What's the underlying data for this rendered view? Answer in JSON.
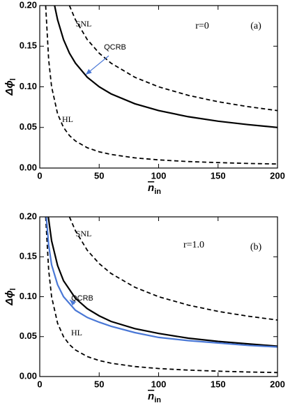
{
  "chart_data": [
    {
      "type": "line",
      "panel_label": "(a)",
      "param_label": "r=0",
      "x_label": "n",
      "x_label_sub": "in",
      "y_label": "Δϕ",
      "y_label_sub": "l",
      "xlim": [
        0,
        200
      ],
      "ylim": [
        0,
        0.2
      ],
      "xticks": [
        0,
        50,
        100,
        150,
        200
      ],
      "yticks": [
        {
          "value": 0,
          "label": "0.00"
        },
        {
          "value": 0.05,
          "label": "0.05"
        },
        {
          "value": 0.1,
          "label": "0.10"
        },
        {
          "value": 0.15,
          "label": "0.15"
        },
        {
          "value": 0.2,
          "label": "0.20"
        }
      ],
      "series": [
        {
          "name": "SNL",
          "color": "#000000",
          "dash": true,
          "x": [
            25,
            30,
            40,
            50,
            60,
            80,
            100,
            125,
            150,
            175,
            200
          ],
          "values": [
            0.2,
            0.1826,
            0.1581,
            0.1414,
            0.1291,
            0.1118,
            0.1,
            0.0894,
            0.0816,
            0.0756,
            0.0707
          ]
        },
        {
          "name": "HL",
          "color": "#000000",
          "dash": true,
          "x": [
            5,
            7.5,
            10,
            15,
            20,
            25,
            30,
            40,
            50,
            60,
            80,
            100,
            125,
            150,
            175,
            200
          ],
          "values": [
            0.2,
            0.1333,
            0.1,
            0.0667,
            0.05,
            0.04,
            0.0333,
            0.025,
            0.02,
            0.0167,
            0.0125,
            0.01,
            0.008,
            0.0067,
            0.0057,
            0.005
          ]
        },
        {
          "name": "QCRB",
          "color": "#000000",
          "dash": false,
          "x": [
            12.5,
            15,
            20,
            25,
            30,
            40,
            50,
            60,
            80,
            100,
            125,
            150,
            175,
            200
          ],
          "values": [
            0.2,
            0.1826,
            0.1581,
            0.1414,
            0.1291,
            0.1118,
            0.1,
            0.0913,
            0.0791,
            0.0707,
            0.0632,
            0.0577,
            0.0535,
            0.05
          ]
        }
      ]
    },
    {
      "type": "line",
      "panel_label": "(b)",
      "param_label": "r=1.0",
      "x_label": "n",
      "x_label_sub": "in",
      "y_label": "Δϕ",
      "y_label_sub": "l",
      "xlim": [
        0,
        200
      ],
      "ylim": [
        0,
        0.2
      ],
      "xticks": [
        0,
        50,
        100,
        150,
        200
      ],
      "yticks": [
        {
          "value": 0,
          "label": "0.00"
        },
        {
          "value": 0.05,
          "label": "0.05"
        },
        {
          "value": 0.1,
          "label": "0.10"
        },
        {
          "value": 0.15,
          "label": "0.15"
        },
        {
          "value": 0.2,
          "label": "0.20"
        }
      ],
      "series": [
        {
          "name": "SNL",
          "color": "#000000",
          "dash": true,
          "x": [
            25,
            30,
            40,
            50,
            60,
            80,
            100,
            125,
            150,
            175,
            200
          ],
          "values": [
            0.2,
            0.1826,
            0.1581,
            0.1414,
            0.1291,
            0.1118,
            0.1,
            0.0894,
            0.0816,
            0.0756,
            0.0707
          ]
        },
        {
          "name": "HL",
          "color": "#000000",
          "dash": true,
          "x": [
            5,
            7.5,
            10,
            15,
            20,
            25,
            30,
            40,
            50,
            60,
            80,
            100,
            125,
            150,
            175,
            200
          ],
          "values": [
            0.2,
            0.1333,
            0.1,
            0.0667,
            0.05,
            0.04,
            0.0333,
            0.025,
            0.02,
            0.0167,
            0.0125,
            0.01,
            0.008,
            0.0067,
            0.0057,
            0.005
          ]
        },
        {
          "color": "#000000",
          "dash": false,
          "x": [
            7.2,
            10,
            15,
            20,
            30,
            40,
            50,
            60,
            80,
            100,
            125,
            150,
            175,
            200
          ],
          "values": [
            0.2,
            0.17,
            0.139,
            0.12,
            0.098,
            0.085,
            0.076,
            0.069,
            0.06,
            0.054,
            0.048,
            0.044,
            0.041,
            0.038
          ]
        },
        {
          "name": "QCRB",
          "color": "#4a78d6",
          "dash": false,
          "x": [
            5.5,
            7.5,
            10,
            15,
            20,
            30,
            40,
            50,
            60,
            80,
            100,
            125,
            150,
            175,
            200
          ],
          "values": [
            0.2,
            0.165,
            0.14,
            0.115,
            0.1,
            0.083,
            0.074,
            0.068,
            0.063,
            0.055,
            0.049,
            0.045,
            0.042,
            0.039,
            0.037
          ]
        }
      ]
    }
  ]
}
